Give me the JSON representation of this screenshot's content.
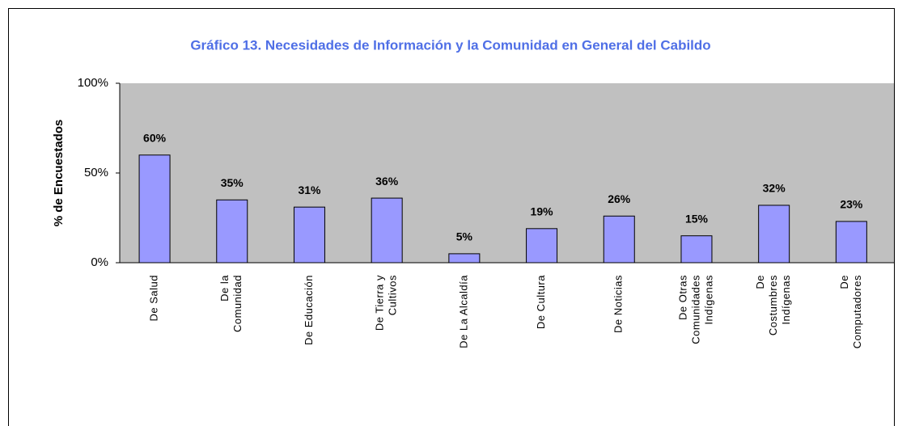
{
  "chart_data": {
    "type": "bar",
    "title": "Gráfico 13. Necesidades de Información y la Comunidad en General del Cabildo",
    "ylabel": "% de Encuestados",
    "categories": [
      [
        "De Salud"
      ],
      [
        "De la",
        "Comunidad"
      ],
      [
        "De Educación"
      ],
      [
        "De Tierra y",
        "Cultivos"
      ],
      [
        "De La Alcaldía"
      ],
      [
        "De Cultura"
      ],
      [
        "De Noticias"
      ],
      [
        "De Otras",
        "Comunidades",
        "Indígenas"
      ],
      [
        "De",
        "Costumbres",
        "Indígenas"
      ],
      [
        "De",
        "Computadores"
      ]
    ],
    "values": [
      60,
      35,
      31,
      36,
      5,
      19,
      26,
      15,
      32,
      23
    ],
    "value_labels": [
      "60%",
      "35%",
      "31%",
      "36%",
      "5%",
      "19%",
      "26%",
      "15%",
      "32%",
      "23%"
    ],
    "color": "#9999ff",
    "ylim": [
      0,
      100
    ],
    "yticks": [
      {
        "value": 0,
        "label": "0%"
      },
      {
        "value": 50,
        "label": "50%"
      },
      {
        "value": 100,
        "label": "100%"
      }
    ]
  }
}
